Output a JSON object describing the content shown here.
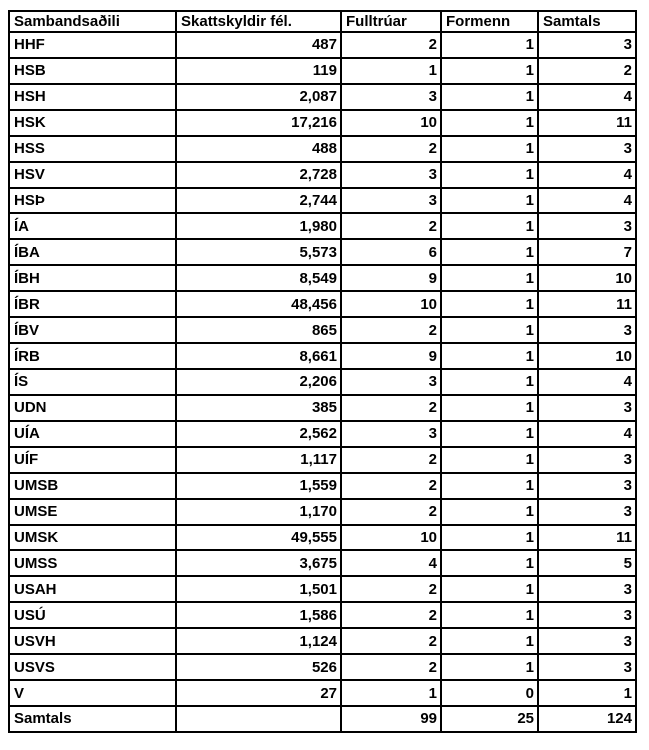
{
  "table": {
    "columns": [
      "Sambandsaðili",
      "Skattskyldir fél.",
      "Fulltrúar",
      "Formenn",
      "Samtals"
    ],
    "rows": [
      [
        "HHF",
        "487",
        "2",
        "1",
        "3"
      ],
      [
        "HSB",
        "119",
        "1",
        "1",
        "2"
      ],
      [
        "HSH",
        "2,087",
        "3",
        "1",
        "4"
      ],
      [
        "HSK",
        "17,216",
        "10",
        "1",
        "11"
      ],
      [
        "HSS",
        "488",
        "2",
        "1",
        "3"
      ],
      [
        "HSV",
        "2,728",
        "3",
        "1",
        "4"
      ],
      [
        "HSÞ",
        "2,744",
        "3",
        "1",
        "4"
      ],
      [
        "ÍA",
        "1,980",
        "2",
        "1",
        "3"
      ],
      [
        "ÍBA",
        "5,573",
        "6",
        "1",
        "7"
      ],
      [
        "ÍBH",
        "8,549",
        "9",
        "1",
        "10"
      ],
      [
        "ÍBR",
        "48,456",
        "10",
        "1",
        "11"
      ],
      [
        "ÍBV",
        "865",
        "2",
        "1",
        "3"
      ],
      [
        "ÍRB",
        "8,661",
        "9",
        "1",
        "10"
      ],
      [
        "ÍS",
        "2,206",
        "3",
        "1",
        "4"
      ],
      [
        "UDN",
        "385",
        "2",
        "1",
        "3"
      ],
      [
        "UÍA",
        "2,562",
        "3",
        "1",
        "4"
      ],
      [
        "UÍF",
        "1,117",
        "2",
        "1",
        "3"
      ],
      [
        "UMSB",
        "1,559",
        "2",
        "1",
        "3"
      ],
      [
        "UMSE",
        "1,170",
        "2",
        "1",
        "3"
      ],
      [
        "UMSK",
        "49,555",
        "10",
        "1",
        "11"
      ],
      [
        "UMSS",
        "3,675",
        "4",
        "1",
        "5"
      ],
      [
        "USAH",
        "1,501",
        "2",
        "1",
        "3"
      ],
      [
        "USÚ",
        "1,586",
        "2",
        "1",
        "3"
      ],
      [
        "USVH",
        "1,124",
        "2",
        "1",
        "3"
      ],
      [
        "USVS",
        "526",
        "2",
        "1",
        "3"
      ],
      [
        "V",
        "27",
        "1",
        "0",
        "1"
      ]
    ],
    "footer": [
      "Samtals",
      "",
      "99",
      "25",
      "124"
    ]
  }
}
